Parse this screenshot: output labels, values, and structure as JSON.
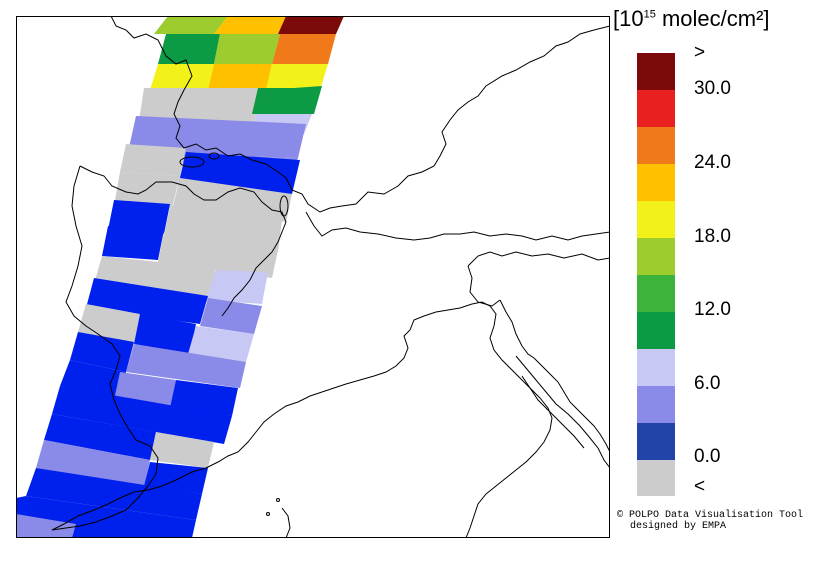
{
  "legend": {
    "unit_prefix": "[10",
    "unit_exponent": "15",
    "unit_suffix": " molec/cm²]",
    "labels": {
      "over": ">",
      "v30": "30.0",
      "v24": "24.0",
      "v18": "18.0",
      "v12": "12.0",
      "v6": "6.0",
      "v0": "0.0",
      "under": "<"
    },
    "colors": [
      "#7d0a0a",
      "#e82020",
      "#f07a1a",
      "#ffc000",
      "#f2f21a",
      "#9ccc2e",
      "#3cb43c",
      "#0d9a44",
      "#c8c8f4",
      "#8a8ae8",
      "#2244aa",
      "#cccccc"
    ]
  },
  "credit": {
    "line1": "© POLPO Data Visualisation Tool",
    "line2": "designed by EMPA"
  }
}
